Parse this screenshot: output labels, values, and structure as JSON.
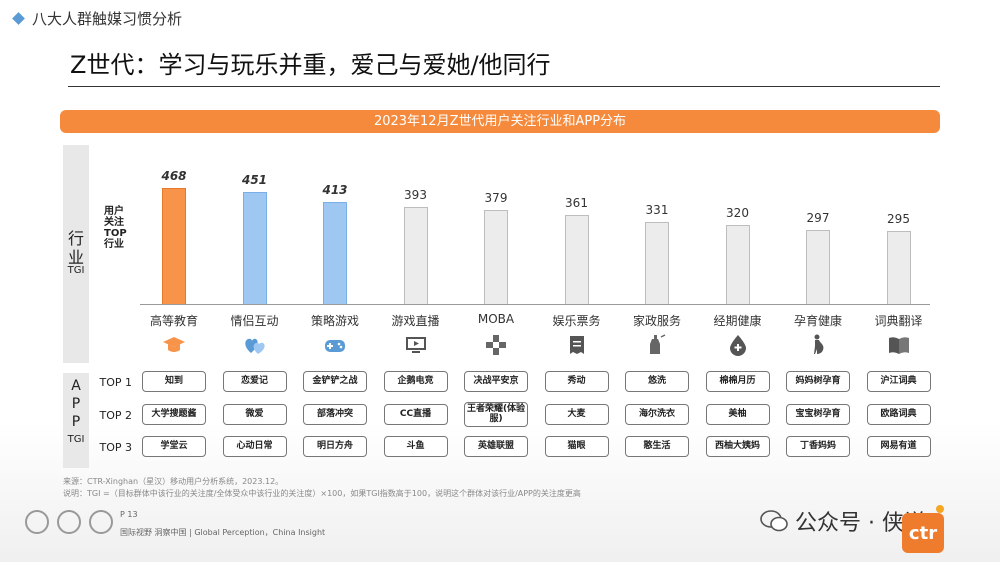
{
  "header": {
    "section": "八大人群触媒习惯分析"
  },
  "title": "Z世代：学习与玩乐并重，爱己与爱她/他同行",
  "banner": "2023年12月Z世代用户关注行业和APP分布",
  "side_labels": {
    "industry_zh": [
      "行",
      "业"
    ],
    "industry_tgi": "TGI",
    "app_zh": [
      "A",
      "P",
      "P"
    ],
    "app_tgi": "TGI"
  },
  "y_label": [
    "用户",
    "关注",
    "TOP",
    "行业"
  ],
  "row_labels": [
    "TOP 1",
    "TOP 2",
    "TOP 3"
  ],
  "chart_data": {
    "type": "bar",
    "title": "2023年12月Z世代用户关注行业和APP分布",
    "ylabel": "用户关注TOP行业",
    "categories": [
      "高等教育",
      "情侣互动",
      "策略游戏",
      "游戏直播",
      "MOBA",
      "娱乐票务",
      "家政服务",
      "经期健康",
      "孕育健康",
      "词典翻译"
    ],
    "values": [
      468,
      451,
      413,
      393,
      379,
      361,
      331,
      320,
      297,
      295
    ],
    "value_labels": [
      "468",
      "451",
      "413",
      "393",
      "379",
      "361",
      "331",
      "320",
      "297",
      "295"
    ],
    "bar_colors": [
      "#f7944a",
      "#9ec7f2",
      "#9ec7f2",
      "#ececec",
      "#ececec",
      "#ececec",
      "#ececec",
      "#ececec",
      "#ececec",
      "#ececec"
    ],
    "highlight_bold": [
      true,
      true,
      true,
      false,
      false,
      false,
      false,
      false,
      false,
      false
    ],
    "ylim": [
      0,
      520
    ]
  },
  "icons": [
    "graduation-cap-icon",
    "hearts-icon",
    "gamepad-icon",
    "monitor-icon",
    "dpad-icon",
    "ticket-icon",
    "cleaning-icon",
    "drop-icon",
    "pregnancy-icon",
    "book-icon"
  ],
  "apps": [
    [
      "知到",
      "大学搜题酱",
      "学堂云"
    ],
    [
      "恋爱记",
      "微爱",
      "心动日常"
    ],
    [
      "金铲铲之战",
      "部落冲突",
      "明日方舟"
    ],
    [
      "企鹅电竞",
      "CC直播",
      "斗鱼"
    ],
    [
      "决战平安京",
      "王者荣耀(体验服)",
      "英雄联盟"
    ],
    [
      "秀动",
      "大麦",
      "猫眼"
    ],
    [
      "悠洗",
      "海尔洗衣",
      "憨生活"
    ],
    [
      "棉棉月历",
      "美柚",
      "西柚大姨妈"
    ],
    [
      "妈妈树孕育",
      "宝宝树孕育",
      "丁香妈妈"
    ],
    [
      "沪江词典",
      "欧路词典",
      "网易有道"
    ]
  ],
  "footnotes": [
    "来源：CTR-Xinghan（星汉）移动用户分析系统，2023.12。",
    "说明：TGI =（目标群体中该行业的关注度/全体受众中该行业的关注度）×100，如果TGI指数高于100，说明这个群体对该行业/APP的关注度更高"
  ],
  "page": "P 13",
  "slogan": "国际视野 洞察中国 | Global Perception，China Insight",
  "watermark": "公众号 · 侠说",
  "logo": "ctr"
}
